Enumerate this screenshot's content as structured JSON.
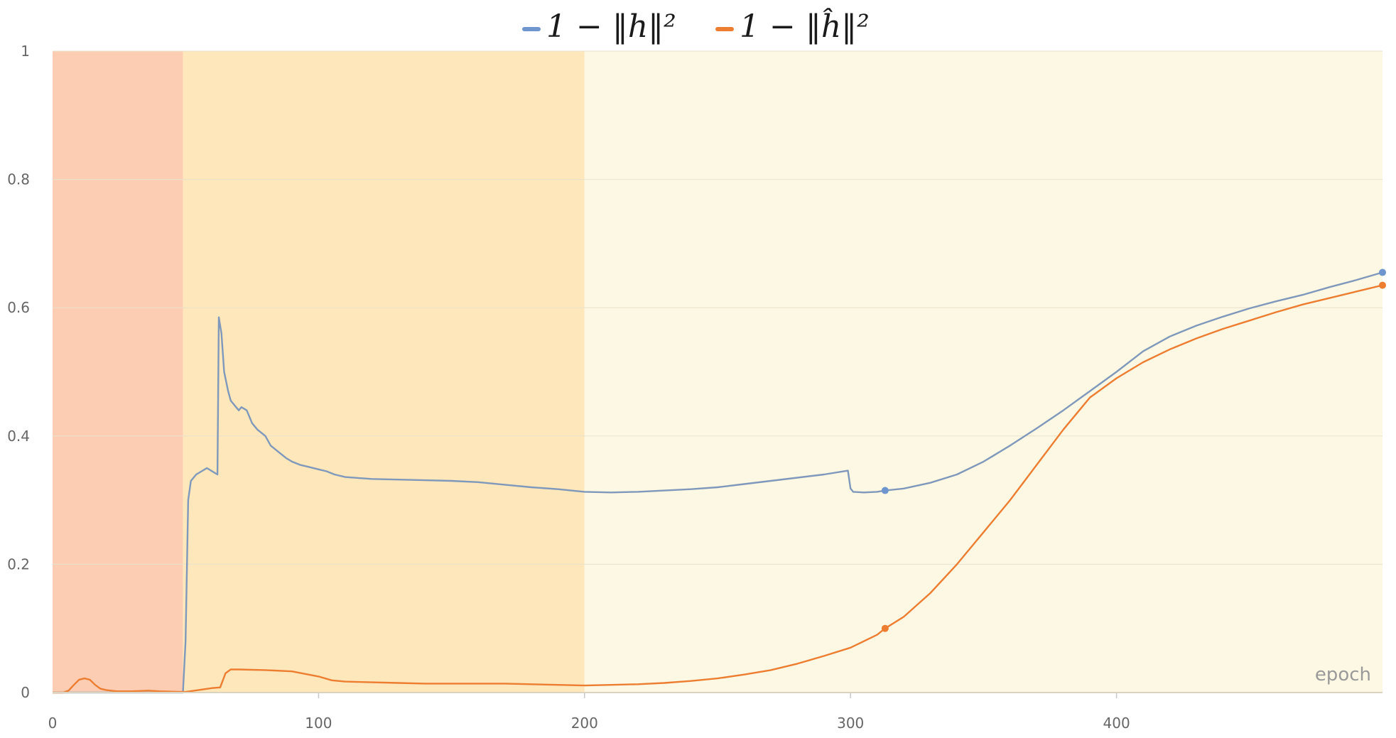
{
  "chart_data": {
    "type": "line",
    "title": "",
    "xlabel": "epoch",
    "ylabel": "",
    "xlim": [
      0,
      500
    ],
    "ylim": [
      0,
      1
    ],
    "grid": true,
    "legend_position": "top-center",
    "x_ticks": [
      0,
      100,
      200,
      300,
      400
    ],
    "y_ticks": [
      0,
      0.2,
      0.4,
      0.6,
      0.8,
      1
    ],
    "x_tick_labels": [
      "0",
      "100",
      "200",
      "300",
      "400"
    ],
    "y_tick_labels": [
      "0",
      "0.2",
      "0.4",
      "0.6",
      "0.8",
      "1"
    ],
    "background_bands": [
      {
        "x_start": 0,
        "x_end": 49,
        "color": "#fdcdb3"
      },
      {
        "x_start": 49,
        "x_end": 200,
        "color": "#fde7bb"
      },
      {
        "x_start": 200,
        "x_end": 500,
        "color": "#fcf8e3"
      }
    ],
    "series": [
      {
        "name": "1 − ‖h‖²",
        "color": "#6f95cf",
        "line_color": "#7f98bb",
        "marked_points": [
          [
            313,
            0.315
          ],
          [
            500,
            0.655
          ]
        ],
        "points": [
          [
            0,
            0
          ],
          [
            48,
            0
          ],
          [
            49,
            0
          ],
          [
            50,
            0.08
          ],
          [
            51,
            0.3
          ],
          [
            52,
            0.33
          ],
          [
            54,
            0.34
          ],
          [
            56,
            0.345
          ],
          [
            58,
            0.35
          ],
          [
            60,
            0.345
          ],
          [
            62,
            0.34
          ],
          [
            62.5,
            0.585
          ],
          [
            63.5,
            0.56
          ],
          [
            64.5,
            0.5
          ],
          [
            66,
            0.47
          ],
          [
            67,
            0.455
          ],
          [
            68,
            0.45
          ],
          [
            69,
            0.445
          ],
          [
            70,
            0.44
          ],
          [
            71,
            0.445
          ],
          [
            73,
            0.44
          ],
          [
            75,
            0.42
          ],
          [
            77,
            0.41
          ],
          [
            80,
            0.4
          ],
          [
            82,
            0.385
          ],
          [
            85,
            0.375
          ],
          [
            88,
            0.365
          ],
          [
            90,
            0.36
          ],
          [
            93,
            0.355
          ],
          [
            96,
            0.352
          ],
          [
            100,
            0.348
          ],
          [
            103,
            0.345
          ],
          [
            106,
            0.34
          ],
          [
            110,
            0.336
          ],
          [
            120,
            0.333
          ],
          [
            130,
            0.332
          ],
          [
            140,
            0.331
          ],
          [
            150,
            0.33
          ],
          [
            160,
            0.328
          ],
          [
            170,
            0.324
          ],
          [
            180,
            0.32
          ],
          [
            190,
            0.317
          ],
          [
            200,
            0.313
          ],
          [
            210,
            0.312
          ],
          [
            220,
            0.313
          ],
          [
            230,
            0.315
          ],
          [
            240,
            0.317
          ],
          [
            250,
            0.32
          ],
          [
            260,
            0.325
          ],
          [
            270,
            0.33
          ],
          [
            280,
            0.335
          ],
          [
            290,
            0.34
          ],
          [
            299,
            0.346
          ],
          [
            300,
            0.318
          ],
          [
            301,
            0.313
          ],
          [
            305,
            0.312
          ],
          [
            310,
            0.313
          ],
          [
            313,
            0.315
          ],
          [
            320,
            0.318
          ],
          [
            330,
            0.327
          ],
          [
            340,
            0.34
          ],
          [
            350,
            0.36
          ],
          [
            360,
            0.385
          ],
          [
            370,
            0.412
          ],
          [
            380,
            0.44
          ],
          [
            390,
            0.47
          ],
          [
            400,
            0.5
          ],
          [
            410,
            0.532
          ],
          [
            420,
            0.555
          ],
          [
            430,
            0.572
          ],
          [
            440,
            0.586
          ],
          [
            450,
            0.599
          ],
          [
            460,
            0.61
          ],
          [
            470,
            0.62
          ],
          [
            480,
            0.632
          ],
          [
            490,
            0.643
          ],
          [
            500,
            0.655
          ]
        ]
      },
      {
        "name": "1 − ‖ĥ‖²",
        "color": "#ed7d31",
        "line_color": "#ed7d31",
        "marked_points": [
          [
            313,
            0.1
          ],
          [
            500,
            0.635
          ]
        ],
        "points": [
          [
            0,
            0
          ],
          [
            4,
            0
          ],
          [
            6,
            0.003
          ],
          [
            8,
            0.012
          ],
          [
            10,
            0.02
          ],
          [
            12,
            0.022
          ],
          [
            14,
            0.02
          ],
          [
            16,
            0.012
          ],
          [
            18,
            0.006
          ],
          [
            20,
            0.004
          ],
          [
            24,
            0.002
          ],
          [
            30,
            0.002
          ],
          [
            36,
            0.003
          ],
          [
            40,
            0.002
          ],
          [
            49,
            0.001
          ],
          [
            50,
            0.001
          ],
          [
            55,
            0.004
          ],
          [
            60,
            0.007
          ],
          [
            63,
            0.008
          ],
          [
            65,
            0.03
          ],
          [
            67,
            0.036
          ],
          [
            70,
            0.036
          ],
          [
            80,
            0.035
          ],
          [
            90,
            0.033
          ],
          [
            100,
            0.025
          ],
          [
            105,
            0.019
          ],
          [
            110,
            0.017
          ],
          [
            120,
            0.016
          ],
          [
            130,
            0.015
          ],
          [
            140,
            0.014
          ],
          [
            150,
            0.014
          ],
          [
            160,
            0.014
          ],
          [
            170,
            0.014
          ],
          [
            180,
            0.013
          ],
          [
            190,
            0.012
          ],
          [
            200,
            0.011
          ],
          [
            210,
            0.012
          ],
          [
            220,
            0.013
          ],
          [
            230,
            0.015
          ],
          [
            240,
            0.018
          ],
          [
            250,
            0.022
          ],
          [
            260,
            0.028
          ],
          [
            270,
            0.035
          ],
          [
            280,
            0.045
          ],
          [
            290,
            0.057
          ],
          [
            300,
            0.07
          ],
          [
            310,
            0.09
          ],
          [
            313,
            0.1
          ],
          [
            320,
            0.118
          ],
          [
            330,
            0.155
          ],
          [
            340,
            0.2
          ],
          [
            350,
            0.25
          ],
          [
            360,
            0.3
          ],
          [
            370,
            0.355
          ],
          [
            380,
            0.41
          ],
          [
            390,
            0.46
          ],
          [
            400,
            0.49
          ],
          [
            410,
            0.515
          ],
          [
            420,
            0.535
          ],
          [
            430,
            0.552
          ],
          [
            440,
            0.567
          ],
          [
            450,
            0.58
          ],
          [
            460,
            0.593
          ],
          [
            470,
            0.605
          ],
          [
            480,
            0.615
          ],
          [
            490,
            0.625
          ],
          [
            500,
            0.635
          ]
        ]
      }
    ]
  }
}
